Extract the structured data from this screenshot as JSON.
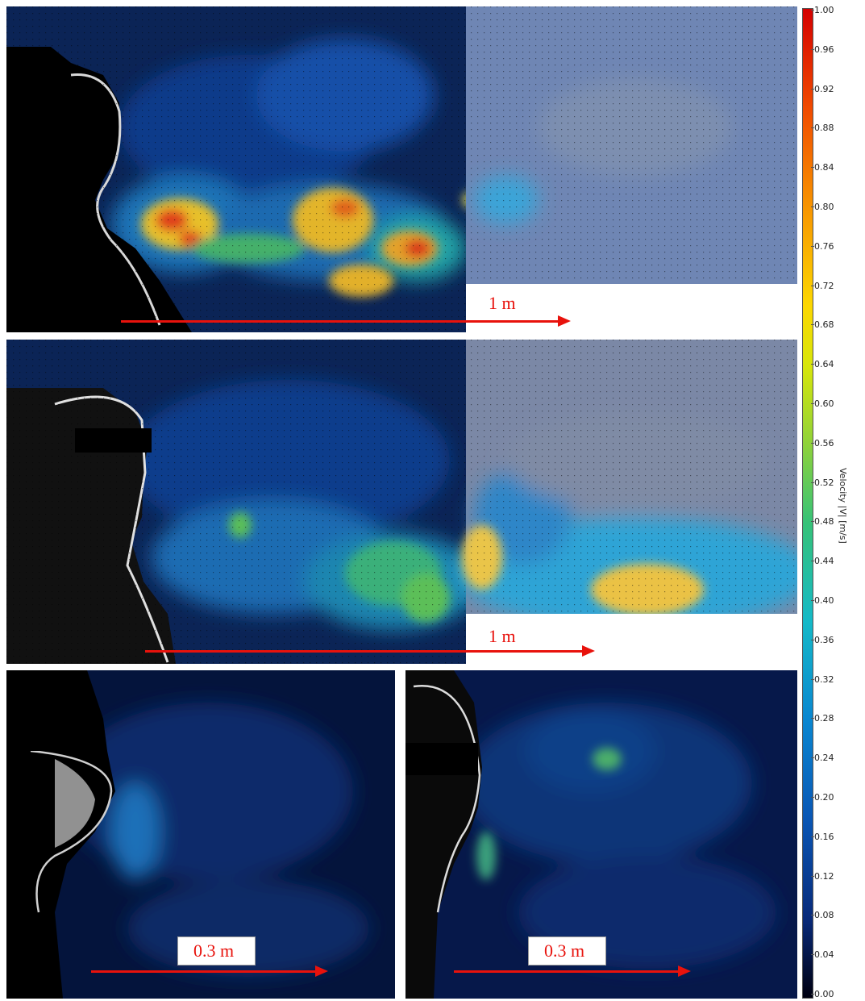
{
  "panels": [
    {
      "id": "panel-1",
      "scale_label": "1 m"
    },
    {
      "id": "panel-2",
      "scale_label": "1 m"
    },
    {
      "id": "panel-3",
      "scale_label": "0.3 m"
    },
    {
      "id": "panel-4",
      "scale_label": "0.3 m"
    }
  ],
  "colorbar": {
    "title": "Velocity |V| [m/s]",
    "min": 0.0,
    "max": 1.0,
    "ticks": [
      "1.00",
      "0.96",
      "0.92",
      "0.88",
      "0.84",
      "0.80",
      "0.76",
      "0.72",
      "0.68",
      "0.64",
      "0.60",
      "0.56",
      "0.52",
      "0.48",
      "0.44",
      "0.40",
      "0.36",
      "0.32",
      "0.28",
      "0.24",
      "0.20",
      "0.16",
      "0.12",
      "0.08",
      "0.04",
      "0.00"
    ]
  }
}
